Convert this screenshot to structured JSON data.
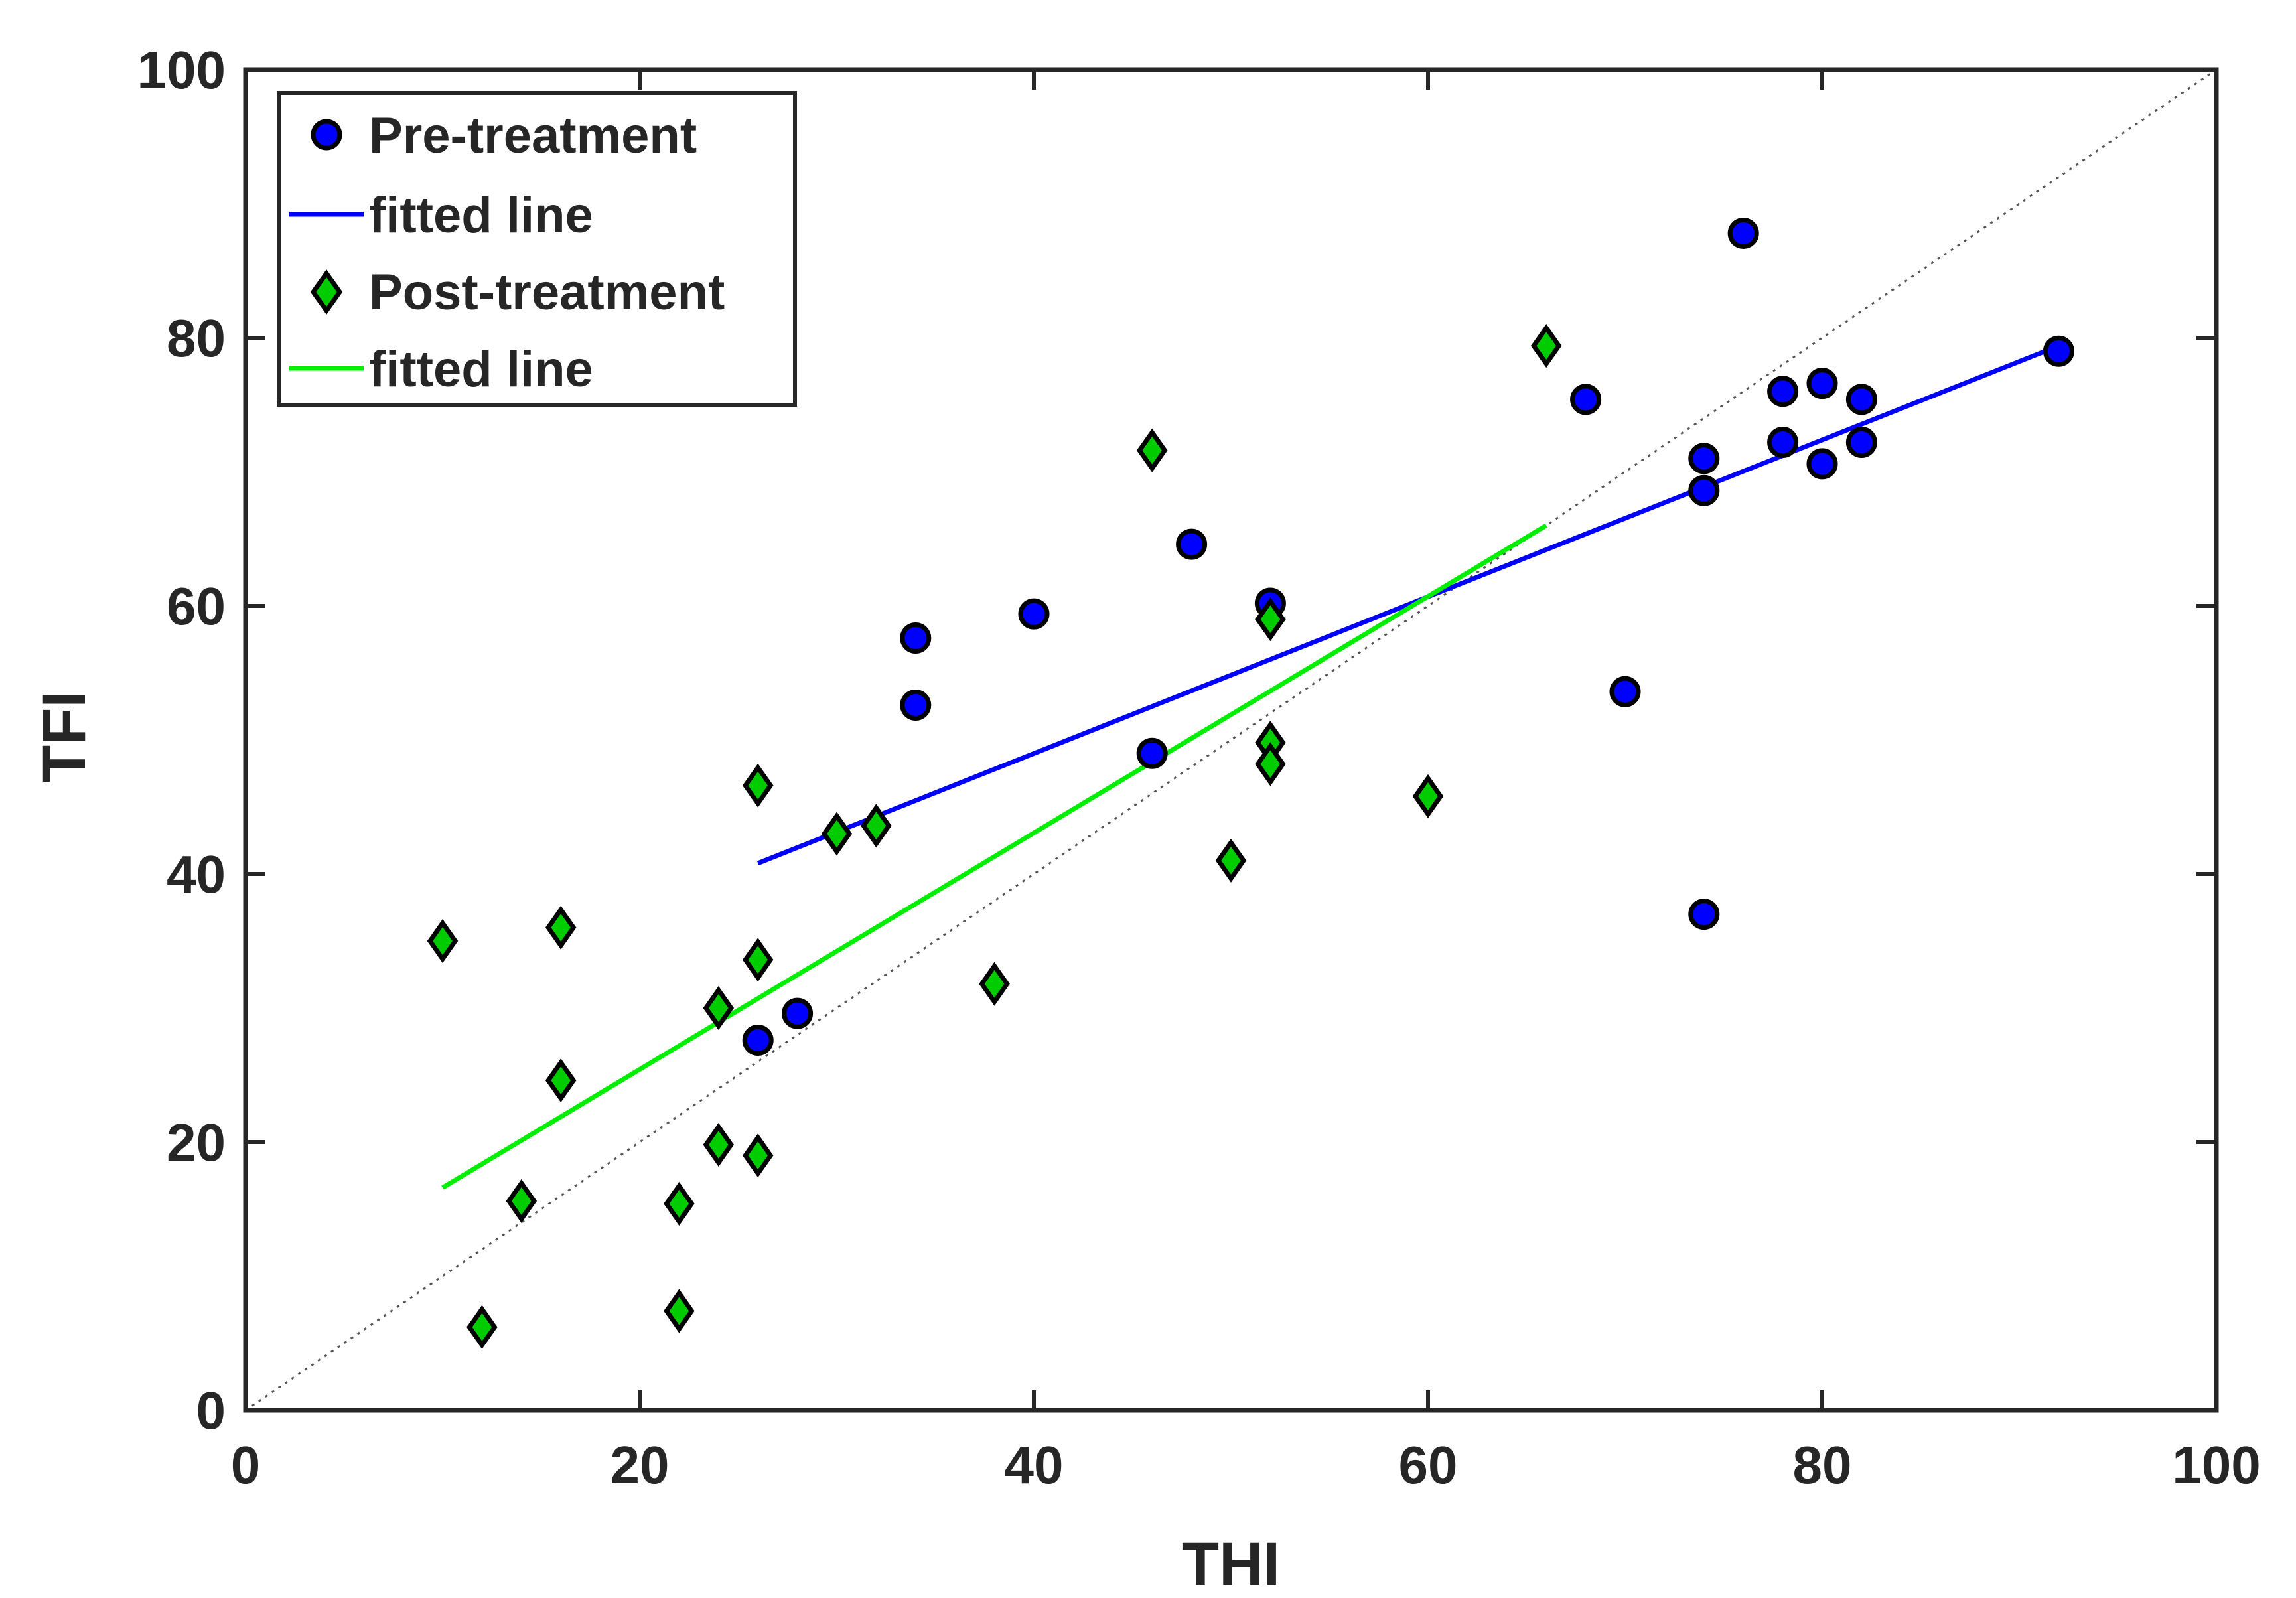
{
  "chart_data": {
    "type": "scatter",
    "title": "",
    "xlabel": "THI",
    "ylabel": "TFI",
    "xlim": [
      0,
      100
    ],
    "ylim": [
      0,
      100
    ],
    "xticks": [
      0,
      20,
      40,
      60,
      80,
      100
    ],
    "yticks": [
      0,
      20,
      40,
      60,
      80,
      100
    ],
    "grid": false,
    "legend_position": "top-left",
    "reference_line": {
      "name": "identity",
      "style": "dotted",
      "color": "#555555",
      "from": [
        0,
        0
      ],
      "to": [
        100,
        100
      ]
    },
    "series": [
      {
        "name": "Pre-treatment",
        "kind": "points",
        "marker": "circle",
        "color": "#0000ff",
        "points": [
          [
            26,
            27.6
          ],
          [
            28,
            29.6
          ],
          [
            34,
            52.6
          ],
          [
            34,
            57.6
          ],
          [
            40,
            59.4
          ],
          [
            46,
            49.0
          ],
          [
            48,
            64.6
          ],
          [
            52,
            60.2
          ],
          [
            68,
            75.4
          ],
          [
            70,
            53.6
          ],
          [
            74,
            37.0
          ],
          [
            74,
            68.6
          ],
          [
            74,
            71.0
          ],
          [
            76,
            87.8
          ],
          [
            78,
            72.2
          ],
          [
            78,
            76.0
          ],
          [
            80,
            70.6
          ],
          [
            80,
            76.6
          ],
          [
            82,
            72.2
          ],
          [
            82,
            75.4
          ],
          [
            92,
            79.0
          ]
        ]
      },
      {
        "name": "fitted line",
        "kind": "line",
        "color": "#0000ff",
        "points": [
          [
            26,
            40.8
          ],
          [
            92,
            79.4
          ]
        ]
      },
      {
        "name": "Post-treatment",
        "kind": "points",
        "marker": "diamond",
        "color": "#00cc00",
        "points": [
          [
            10,
            35.0
          ],
          [
            12,
            6.2
          ],
          [
            14,
            15.6
          ],
          [
            16,
            36.0
          ],
          [
            16,
            24.6
          ],
          [
            22,
            15.4
          ],
          [
            22,
            7.4
          ],
          [
            24,
            30.0
          ],
          [
            24,
            19.8
          ],
          [
            26,
            46.6
          ],
          [
            26,
            33.6
          ],
          [
            26,
            19.0
          ],
          [
            30,
            43.0
          ],
          [
            32,
            43.6
          ],
          [
            38,
            31.8
          ],
          [
            46,
            71.6
          ],
          [
            50,
            41.0
          ],
          [
            52,
            59.0
          ],
          [
            52,
            49.8
          ],
          [
            52,
            48.2
          ],
          [
            60,
            45.8
          ],
          [
            66,
            79.4
          ]
        ]
      },
      {
        "name": "fitted line",
        "kind": "line",
        "color": "#00ee00",
        "points": [
          [
            10,
            16.6
          ],
          [
            66,
            66.0
          ]
        ]
      }
    ]
  }
}
